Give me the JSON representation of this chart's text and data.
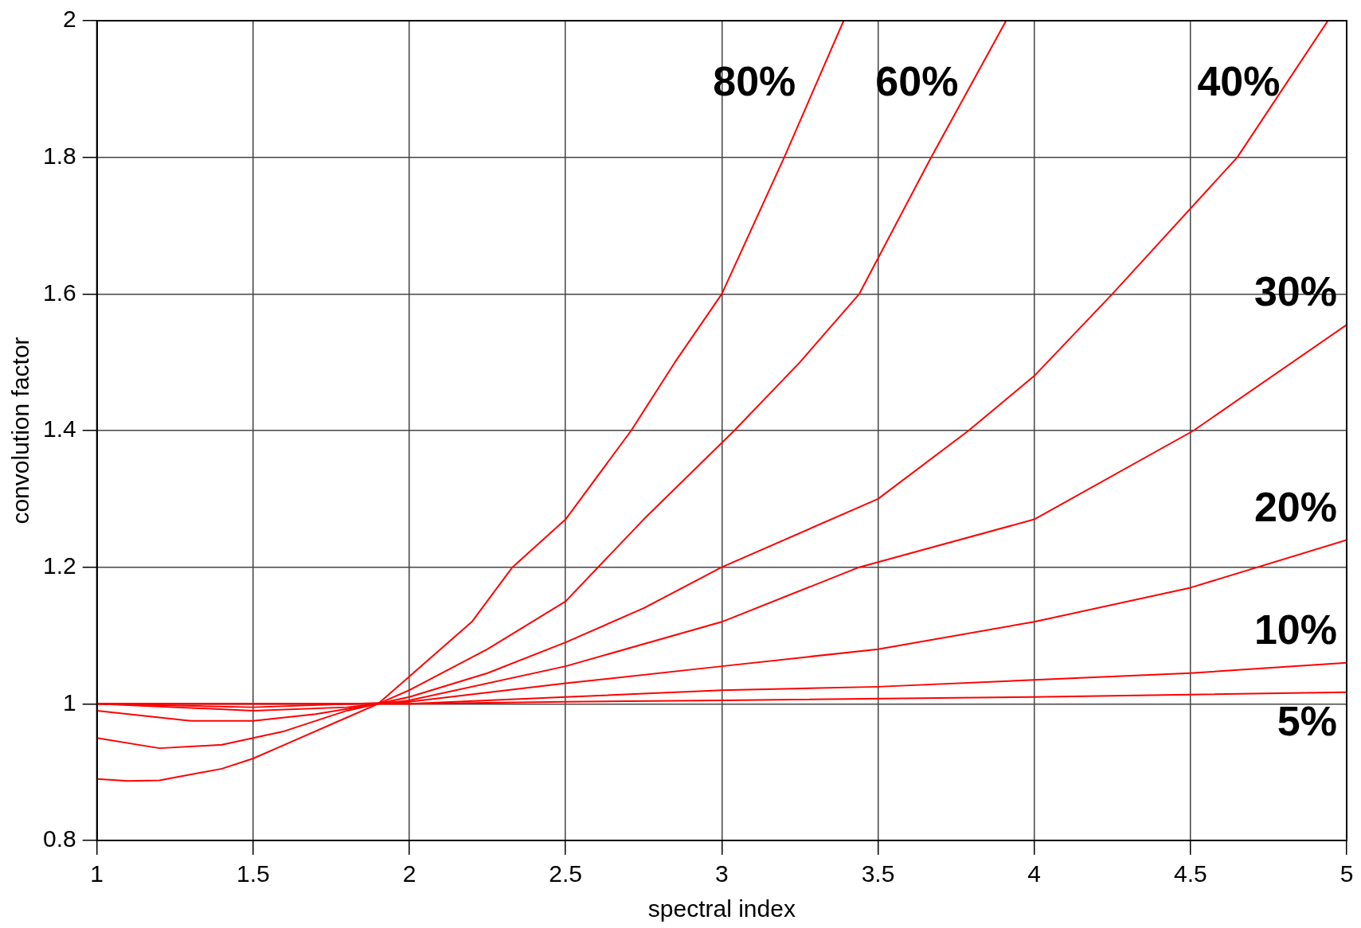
{
  "chart_data": {
    "type": "line",
    "xlabel": "spectral index",
    "ylabel": "convolution factor",
    "xlim": [
      1,
      5
    ],
    "xticks": [
      1,
      1.5,
      2,
      2.5,
      3,
      3.5,
      4,
      4.5,
      5
    ],
    "ylim": [
      0.8,
      2
    ],
    "yticks": [
      0.8,
      1,
      1.2,
      1.4,
      1.6,
      1.8,
      2
    ],
    "grid": true,
    "legend": false,
    "marker": "none",
    "line_style": "solid",
    "series": [
      {
        "name": "80%",
        "color": "#ff0000",
        "x": [
          1,
          1.1,
          1.2,
          1.4,
          1.5,
          1.6,
          1.8,
          1.9,
          2,
          2.2,
          2.33,
          2.5,
          2.71,
          2.85,
          3,
          3.2,
          3.39
        ],
        "values": [
          0.89,
          0.887,
          0.888,
          0.905,
          0.92,
          0.94,
          0.98,
          1.0,
          1.04,
          1.12,
          1.2,
          1.27,
          1.4,
          1.5,
          1.6,
          1.8,
          2.0
        ]
      },
      {
        "name": "60%",
        "color": "#ff0000",
        "x": [
          1,
          1.2,
          1.4,
          1.6,
          1.8,
          1.9,
          2,
          2.25,
          2.5,
          2.75,
          3.04,
          3.25,
          3.44,
          3.67,
          3.91
        ],
        "values": [
          0.95,
          0.935,
          0.94,
          0.96,
          0.99,
          1.0,
          1.02,
          1.08,
          1.15,
          1.27,
          1.4,
          1.5,
          1.6,
          1.8,
          2.0
        ]
      },
      {
        "name": "40%",
        "color": "#ff0000",
        "x": [
          1,
          1.3,
          1.5,
          1.7,
          1.9,
          2,
          2.25,
          2.5,
          2.75,
          3,
          3.5,
          3.79,
          4,
          4.25,
          4.65,
          4.94
        ],
        "values": [
          0.99,
          0.975,
          0.975,
          0.985,
          1.0,
          1.01,
          1.045,
          1.09,
          1.14,
          1.2,
          1.3,
          1.4,
          1.48,
          1.6,
          1.8,
          2.0
        ]
      },
      {
        "name": "30%",
        "color": "#ff0000",
        "x": [
          1,
          1.5,
          1.8,
          2,
          2.5,
          3,
          3.44,
          4,
          4.51,
          5
        ],
        "values": [
          1.0,
          0.99,
          0.995,
          1.005,
          1.055,
          1.12,
          1.2,
          1.27,
          1.4,
          1.555
        ]
      },
      {
        "name": "20%",
        "color": "#ff0000",
        "x": [
          1,
          1.5,
          2,
          2.5,
          3,
          3.5,
          4,
          4.5,
          5
        ],
        "values": [
          1.0,
          0.995,
          1.003,
          1.03,
          1.055,
          1.08,
          1.12,
          1.17,
          1.24
        ]
      },
      {
        "name": "10%",
        "color": "#ff0000",
        "x": [
          1,
          2,
          2.5,
          3,
          3.5,
          4,
          4.5,
          5
        ],
        "values": [
          1.0,
          1.0,
          1.01,
          1.02,
          1.025,
          1.035,
          1.045,
          1.06
        ]
      },
      {
        "name": "5%",
        "color": "#ff0000",
        "x": [
          1,
          2,
          2.5,
          3,
          4,
          5
        ],
        "values": [
          1.0,
          1.0,
          1.003,
          1.005,
          1.01,
          1.017
        ]
      }
    ]
  }
}
